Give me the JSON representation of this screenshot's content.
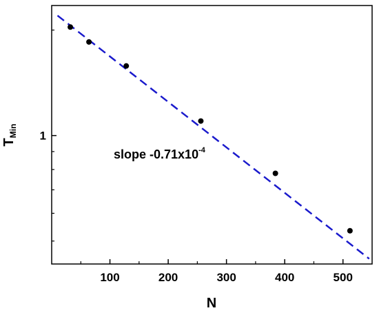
{
  "chart_data": {
    "type": "scatter",
    "xlabel": "N",
    "ylabel": "T",
    "ylabel_subscript": "Min",
    "xlim": [
      0,
      550
    ],
    "ylim": [
      0.43,
      2.35
    ],
    "yscale": "log",
    "x_ticks": [
      {
        "value": 100,
        "label": "100"
      },
      {
        "value": 200,
        "label": "200"
      },
      {
        "value": 300,
        "label": "300"
      },
      {
        "value": 400,
        "label": "400"
      },
      {
        "value": 500,
        "label": "500"
      }
    ],
    "y_ticks": [
      {
        "value": 1,
        "label": "1"
      }
    ],
    "y_minor_ticks": [
      0.5,
      0.6,
      0.7,
      0.8,
      0.9,
      2
    ],
    "grid": false,
    "points": [
      {
        "x": 32,
        "y": 2.04
      },
      {
        "x": 64,
        "y": 1.85
      },
      {
        "x": 128,
        "y": 1.58
      },
      {
        "x": 256,
        "y": 1.1
      },
      {
        "x": 384,
        "y": 0.78
      },
      {
        "x": 512,
        "y": 0.535
      }
    ],
    "fit_line": {
      "style": "dashed",
      "color": "#1a1acc",
      "x_start": 10,
      "y_start": 2.2,
      "x_end": 545,
      "y_end": 0.445
    },
    "annotation": {
      "text": "slope -0.71x10",
      "superscript": "-4"
    }
  }
}
